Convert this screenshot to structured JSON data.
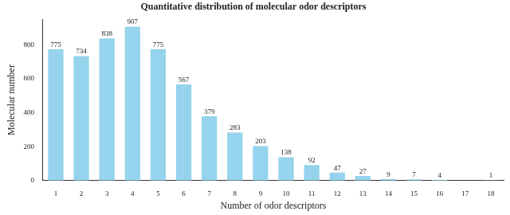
{
  "chart_data": {
    "type": "bar",
    "title": "Quantitative distribution of molecular odor descriptors",
    "x_label": "Number of odor descriptors",
    "y_label": "Molecular number",
    "categories": [
      1,
      2,
      3,
      4,
      5,
      6,
      7,
      8,
      9,
      10,
      11,
      12,
      13,
      14,
      15,
      16,
      17,
      18
    ],
    "values": [
      775,
      734,
      838,
      907,
      775,
      567,
      379,
      283,
      203,
      138,
      92,
      47,
      27,
      9,
      7,
      4,
      null,
      1
    ],
    "color": "#96d3ec",
    "ylim": [
      0,
      950
    ],
    "yticks": [
      0,
      200,
      400,
      600,
      800
    ],
    "grid": false,
    "data_labels": true
  }
}
